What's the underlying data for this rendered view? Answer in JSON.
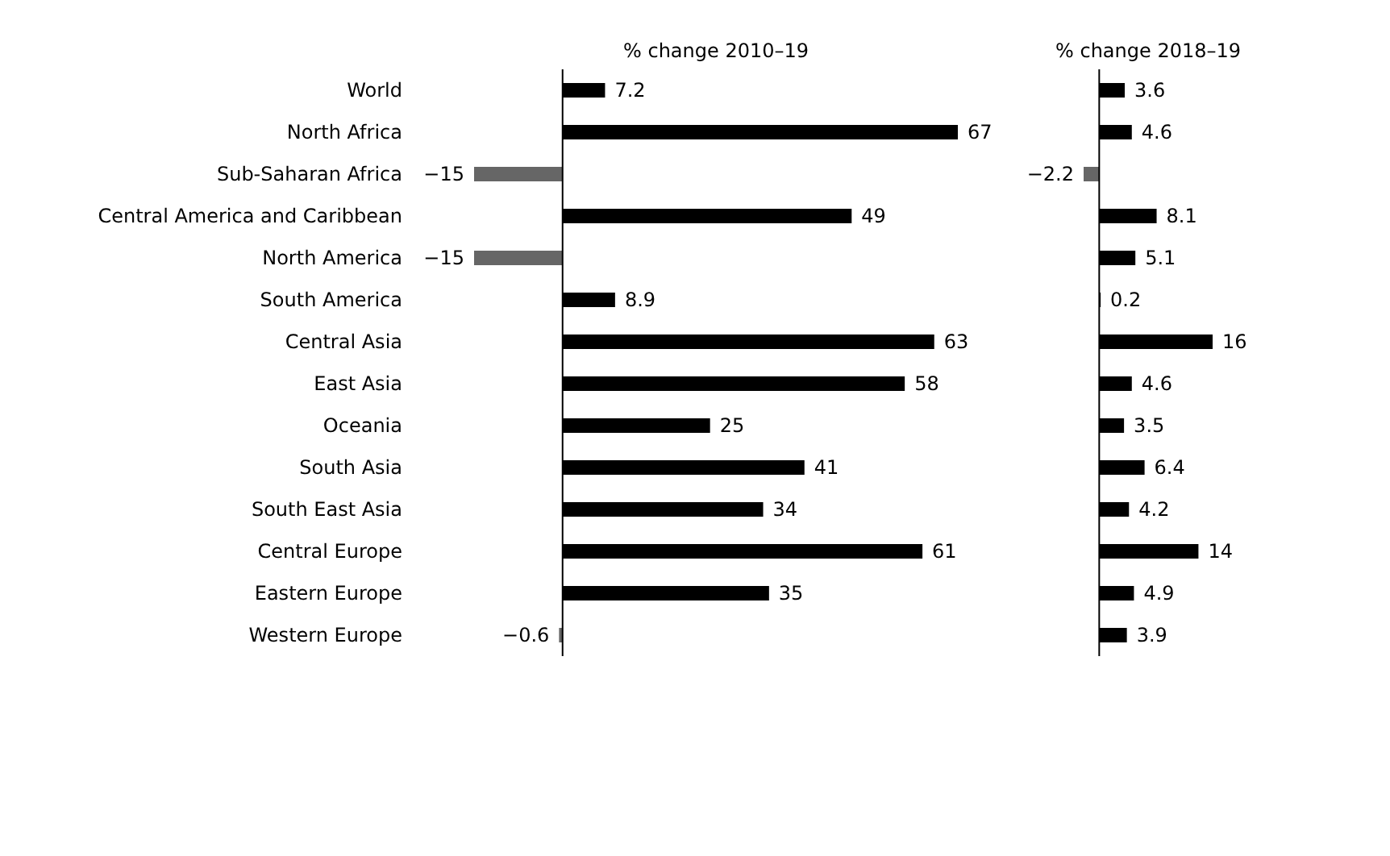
{
  "chart_data": [
    {
      "type": "bar",
      "orientation": "horizontal",
      "title": "% change 2010–19",
      "categories": [
        "World",
        "North Africa",
        "Sub-Saharan Africa",
        "Central America and Caribbean",
        "North America",
        "South America",
        "Central Asia",
        "East Asia",
        "Oceania",
        "South Asia",
        "South East Asia",
        "Central Europe",
        "Eastern Europe",
        "Western Europe"
      ],
      "values": [
        7.2,
        67,
        -15,
        49,
        -15,
        8.9,
        63,
        58,
        25,
        41,
        34,
        61,
        35,
        -0.6
      ],
      "value_labels": [
        "7.2",
        "67",
        "−15",
        "49",
        "−15",
        "8.9",
        "63",
        "58",
        "25",
        "41",
        "34",
        "61",
        "35",
        "−0.6"
      ],
      "colors": [
        "#000000",
        "#000000",
        "#666666",
        "#000000",
        "#666666",
        "#000000",
        "#000000",
        "#000000",
        "#000000",
        "#000000",
        "#000000",
        "#000000",
        "#000000",
        "#666666"
      ],
      "tick_labels": "y"
    },
    {
      "type": "bar",
      "orientation": "horizontal",
      "title": "% change 2018–19",
      "values": [
        3.6,
        4.6,
        -2.2,
        8.1,
        5.1,
        0.2,
        16,
        4.6,
        3.5,
        6.4,
        4.2,
        14,
        4.9,
        3.9
      ],
      "value_labels": [
        "3.6",
        "4.6",
        "−2.2",
        "8.1",
        "5.1",
        "0.2",
        "16",
        "4.6",
        "3.5",
        "6.4",
        "4.2",
        "14",
        "4.9",
        "3.9"
      ],
      "colors": [
        "#000000",
        "#000000",
        "#666666",
        "#000000",
        "#000000",
        "#000000",
        "#000000",
        "#000000",
        "#000000",
        "#000000",
        "#000000",
        "#000000",
        "#000000",
        "#000000"
      ],
      "tick_labels": false
    }
  ]
}
